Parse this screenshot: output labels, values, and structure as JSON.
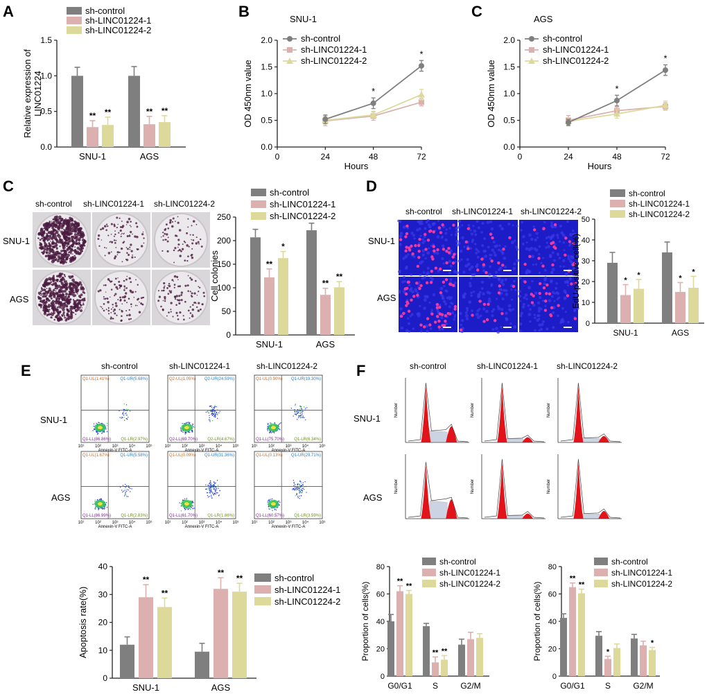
{
  "colors": {
    "control": "#7f7f7f",
    "sh1": "#dcb0ae",
    "sh2": "#dcd99a",
    "axis": "#222222",
    "colony_purple": "#4a1a40",
    "edu_blue": "#1d1dc8",
    "edu_pink": "#ee3aa0",
    "flow_blue": "#1f33d6",
    "flow_green": "#3ccf54",
    "hist_red": "#e2141b"
  },
  "panel_letters": {
    "a": "A",
    "b": "B",
    "c1": "C",
    "c2": "C",
    "d": "D",
    "e": "E",
    "f": "F"
  },
  "legend": [
    "sh-control",
    "sh-LINC01224-1",
    "sh-LINC01224-2"
  ],
  "col_headers": [
    "sh-control",
    "sh-LINC01224-1",
    "sh-LINC01224-2"
  ],
  "row_labels": [
    "SNU-1",
    "AGS"
  ],
  "panelB_title": "SNU-1",
  "panelC_title": "AGS",
  "flow": {
    "xlabel": "Annexin-V FITC-A",
    "ticks": [
      "10¹",
      "10²",
      "10³",
      "10⁴",
      "10⁵"
    ],
    "quads": [
      [
        [
          "Q1-UL(1.41%)",
          "Q1-UR(5.68%)",
          "Q1-LL(86.86%)",
          "Q1-LR(2.97%)"
        ],
        [
          "Q2-UL(1.05%)",
          "Q2-UR(24.59%)",
          "Q2-LL(69.70%)",
          "Q2-LR(4.67%)"
        ],
        [
          "Q1-UL(0.90%)",
          "Q1-UR(19.30%)",
          "Q1-LL(75.70%)",
          "Q1-LR(6.34%)"
        ]
      ],
      [
        [
          "Q1-UL(1.67%)",
          "Q1-UR(5.58%)",
          "Q1-LL(86.99%)",
          "Q1-LR(2.83%)"
        ],
        [
          "Q1-UL(0.09%)",
          "Q1-UR(31.36%)",
          "Q1-LL(61.70%)",
          "Q1-LR(1.86%)"
        ],
        [
          "Q1-UL(0.13%)",
          "Q1-UR(29.71%)",
          "Q1-LL(60.57%)",
          "Q1-LR(3.59%)"
        ]
      ]
    ]
  },
  "hist_ylabel": "Number",
  "chart_data": [
    {
      "id": "A",
      "type": "bar",
      "categories": [
        "SNU-1",
        "AGS"
      ],
      "series": [
        {
          "name": "sh-control",
          "values": [
            1.0,
            1.0
          ],
          "errors": [
            0.12,
            0.13
          ],
          "sig": [
            "",
            ""
          ]
        },
        {
          "name": "sh-LINC01224-1",
          "values": [
            0.28,
            0.32
          ],
          "errors": [
            0.09,
            0.11
          ],
          "sig": [
            "**",
            "**"
          ]
        },
        {
          "name": "sh-LINC01224-2",
          "values": [
            0.31,
            0.35
          ],
          "errors": [
            0.11,
            0.09
          ],
          "sig": [
            "**",
            "**"
          ]
        }
      ],
      "ylabel": "Relative expression of LINC01224",
      "ylim": [
        0,
        1.5
      ],
      "yticks": [
        "0.0",
        "0.5",
        "1.0",
        "1.5"
      ],
      "legend": "top-left"
    },
    {
      "id": "B",
      "type": "line",
      "title": "SNU-1",
      "x": [
        24,
        48,
        72
      ],
      "series": [
        {
          "name": "sh-control",
          "values": [
            0.52,
            0.82,
            1.52
          ],
          "errors": [
            0.08,
            0.1,
            0.1
          ],
          "sig": [
            "",
            "*",
            "*"
          ]
        },
        {
          "name": "sh-LINC01224-1",
          "values": [
            0.49,
            0.58,
            0.84
          ],
          "errors": [
            0.09,
            0.08,
            0.07
          ]
        },
        {
          "name": "sh-LINC01224-2",
          "values": [
            0.5,
            0.6,
            0.98
          ],
          "errors": [
            0.07,
            0.07,
            0.1
          ]
        }
      ],
      "xlabel": "Hours",
      "ylabel": "OD 450nm value",
      "xlim": [
        0,
        72
      ],
      "xticks": [
        "0",
        "24",
        "48",
        "72"
      ],
      "ylim": [
        0,
        2.0
      ],
      "yticks": [
        "0.0",
        "0.5",
        "1.0",
        "1.5",
        "2.0"
      ],
      "legend": "top-left"
    },
    {
      "id": "C",
      "type": "line",
      "title": "AGS",
      "x": [
        24,
        48,
        72
      ],
      "series": [
        {
          "name": "sh-control",
          "values": [
            0.46,
            0.87,
            1.44
          ],
          "errors": [
            0.06,
            0.1,
            0.1
          ],
          "sig": [
            "",
            "*",
            "*"
          ]
        },
        {
          "name": "sh-LINC01224-1",
          "values": [
            0.5,
            0.68,
            0.76
          ],
          "errors": [
            0.09,
            0.07,
            0.07
          ]
        },
        {
          "name": "sh-LINC01224-2",
          "values": [
            0.48,
            0.62,
            0.78
          ],
          "errors": [
            0.07,
            0.08,
            0.08
          ]
        }
      ],
      "xlabel": "Hours",
      "ylabel": "OD 450nm value",
      "xlim": [
        0,
        72
      ],
      "xticks": [
        "0",
        "24",
        "48",
        "72"
      ],
      "ylim": [
        0,
        2.0
      ],
      "yticks": [
        "0.0",
        "0.5",
        "1.0",
        "1.5",
        "2.0"
      ],
      "legend": "top-left"
    },
    {
      "id": "C-colonies",
      "type": "bar",
      "categories": [
        "SNU-1",
        "AGS"
      ],
      "series": [
        {
          "name": "sh-control",
          "values": [
            207,
            222
          ],
          "errors": [
            17,
            15
          ],
          "sig": [
            "",
            ""
          ]
        },
        {
          "name": "sh-LINC01224-1",
          "values": [
            122,
            85
          ],
          "errors": [
            18,
            14
          ],
          "sig": [
            "**",
            "**"
          ]
        },
        {
          "name": "sh-LINC01224-2",
          "values": [
            163,
            101
          ],
          "errors": [
            14,
            12
          ],
          "sig": [
            "*",
            "**"
          ]
        }
      ],
      "ylabel": "Cell colonies",
      "ylim": [
        0,
        250
      ],
      "yticks": [
        "0",
        "50",
        "100",
        "150",
        "200",
        "250"
      ],
      "legend": "top-right"
    },
    {
      "id": "D",
      "type": "bar",
      "categories": [
        "SNU-1",
        "AGS"
      ],
      "series": [
        {
          "name": "sh-control",
          "values": [
            29,
            34
          ],
          "errors": [
            5,
            5
          ],
          "sig": [
            "",
            ""
          ]
        },
        {
          "name": "sh-LINC01224-1",
          "values": [
            13.5,
            15
          ],
          "errors": [
            5,
            4.5
          ],
          "sig": [
            "*",
            "*"
          ]
        },
        {
          "name": "sh-LINC01224-2",
          "values": [
            16.5,
            17
          ],
          "errors": [
            4.5,
            5.5
          ],
          "sig": [
            "*",
            "*"
          ]
        }
      ],
      "ylabel": "EdU-positive cell(%)",
      "ylim": [
        0,
        50
      ],
      "yticks": [
        "0",
        "10",
        "20",
        "30",
        "40",
        "50"
      ],
      "legend": "top-right"
    },
    {
      "id": "E",
      "type": "bar",
      "categories": [
        "SNU-1",
        "AGS"
      ],
      "series": [
        {
          "name": "sh-control",
          "values": [
            12,
            9.5
          ],
          "errors": [
            2.8,
            3
          ],
          "sig": [
            "",
            ""
          ]
        },
        {
          "name": "sh-LINC01224-1",
          "values": [
            29,
            32
          ],
          "errors": [
            4.5,
            4
          ],
          "sig": [
            "**",
            "**"
          ]
        },
        {
          "name": "sh-LINC01224-2",
          "values": [
            25.5,
            31
          ],
          "errors": [
            3.2,
            3
          ],
          "sig": [
            "**",
            "**"
          ]
        }
      ],
      "ylabel": "Apoptosis rate(%)",
      "ylim": [
        0,
        40
      ],
      "yticks": [
        "0",
        "10",
        "20",
        "30",
        "40"
      ],
      "legend": "right"
    },
    {
      "id": "F-SNU1",
      "type": "bar",
      "categories": [
        "G0/G1",
        "S",
        "G2/M"
      ],
      "series": [
        {
          "name": "sh-control",
          "values": [
            40,
            36.5,
            23
          ],
          "errors": [
            5,
            2,
            4
          ],
          "sig": [
            "",
            "",
            ""
          ]
        },
        {
          "name": "sh-LINC01224-1",
          "values": [
            62,
            10,
            27
          ],
          "errors": [
            4,
            4,
            5
          ],
          "sig": [
            "**",
            "**",
            ""
          ]
        },
        {
          "name": "sh-LINC01224-2",
          "values": [
            60,
            12,
            28
          ],
          "errors": [
            2.5,
            3,
            3
          ],
          "sig": [
            "**",
            "**",
            ""
          ]
        }
      ],
      "ylabel": "Proportion of cells(%)",
      "ylim": [
        0,
        80
      ],
      "yticks": [
        "0",
        "20",
        "40",
        "60",
        "80"
      ],
      "legend": "top-right"
    },
    {
      "id": "F-AGS",
      "type": "bar",
      "categories": [
        "G0/G1",
        "S",
        "G2/M"
      ],
      "series": [
        {
          "name": "sh-control",
          "values": [
            42.5,
            29.5,
            27.5
          ],
          "errors": [
            3,
            3,
            3
          ],
          "sig": [
            "",
            "",
            ""
          ]
        },
        {
          "name": "sh-LINC01224-1",
          "values": [
            65,
            12.5,
            22.5
          ],
          "errors": [
            3,
            2,
            3
          ],
          "sig": [
            "**",
            "*",
            ""
          ]
        },
        {
          "name": "sh-LINC01224-2",
          "values": [
            60.5,
            20.5,
            19
          ],
          "errors": [
            3,
            3,
            2
          ],
          "sig": [
            "**",
            "",
            "*"
          ]
        }
      ],
      "ylabel": "Proportion of cells(%)",
      "ylim": [
        0,
        80
      ],
      "yticks": [
        "0",
        "20",
        "40",
        "60",
        "80"
      ],
      "legend": "top-right"
    }
  ]
}
